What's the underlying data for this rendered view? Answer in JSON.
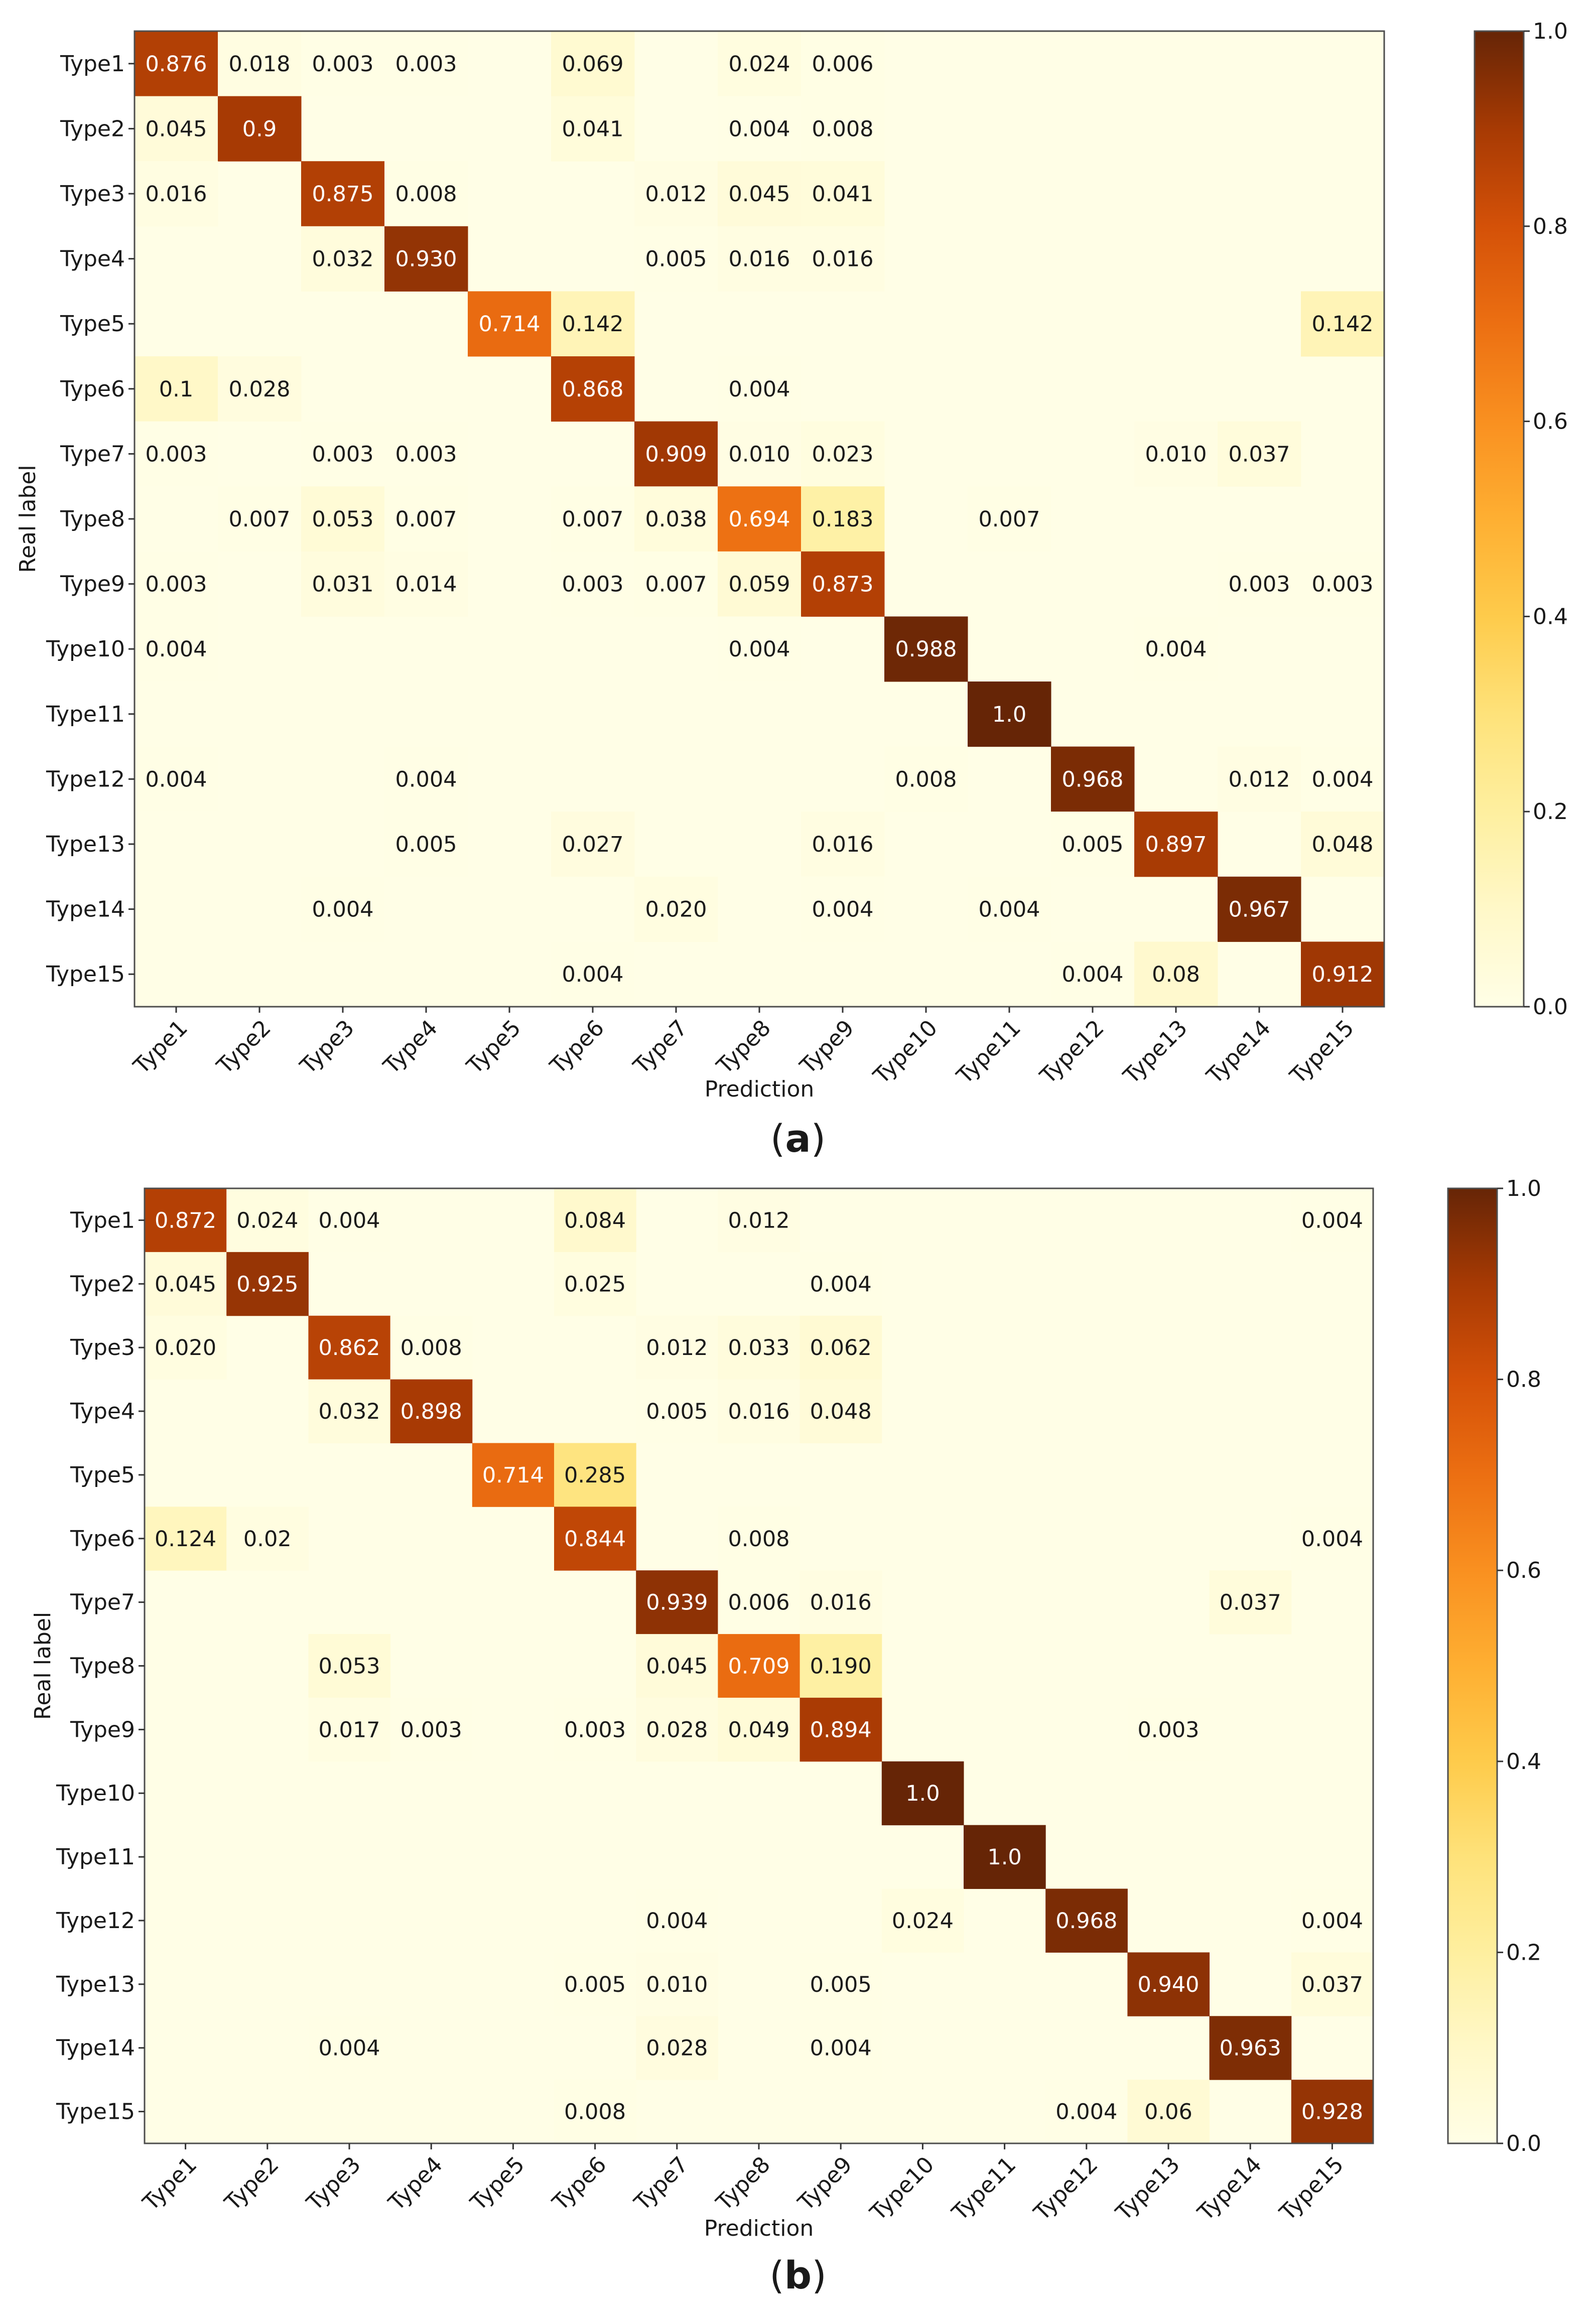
{
  "chart_data": [
    {
      "type": "heatmap",
      "panel_label": "a",
      "xlabel": "Prediction",
      "ylabel": "Real label",
      "x_categories": [
        "Type1",
        "Type2",
        "Type3",
        "Type4",
        "Type5",
        "Type6",
        "Type7",
        "Type8",
        "Type9",
        "Type10",
        "Type11",
        "Type12",
        "Type13",
        "Type14",
        "Type15"
      ],
      "y_categories": [
        "Type1",
        "Type2",
        "Type3",
        "Type4",
        "Type5",
        "Type6",
        "Type7",
        "Type8",
        "Type9",
        "Type10",
        "Type11",
        "Type12",
        "Type13",
        "Type14",
        "Type15"
      ],
      "cells": [
        [
          "0.876",
          "0.018",
          "0.003",
          "0.003",
          "",
          "0.069",
          "",
          "0.024",
          "0.006",
          "",
          "",
          "",
          "",
          "",
          ""
        ],
        [
          "0.045",
          "0.9",
          "",
          "",
          "",
          "0.041",
          "",
          "0.004",
          "0.008",
          "",
          "",
          "",
          "",
          "",
          ""
        ],
        [
          "0.016",
          "",
          "0.875",
          "0.008",
          "",
          "",
          "0.012",
          "0.045",
          "0.041",
          "",
          "",
          "",
          "",
          "",
          ""
        ],
        [
          "",
          "",
          "0.032",
          "0.930",
          "",
          "",
          "0.005",
          "0.016",
          "0.016",
          "",
          "",
          "",
          "",
          "",
          ""
        ],
        [
          "",
          "",
          "",
          "",
          "0.714",
          "0.142",
          "",
          "",
          "",
          "",
          "",
          "",
          "",
          "",
          "0.142"
        ],
        [
          "0.1",
          "0.028",
          "",
          "",
          "",
          "0.868",
          "",
          "0.004",
          "",
          "",
          "",
          "",
          "",
          "",
          ""
        ],
        [
          "0.003",
          "",
          "0.003",
          "0.003",
          "",
          "",
          "0.909",
          "0.010",
          "0.023",
          "",
          "",
          "",
          "0.010",
          "0.037",
          ""
        ],
        [
          "",
          "0.007",
          "0.053",
          "0.007",
          "",
          "0.007",
          "0.038",
          "0.694",
          "0.183",
          "",
          "0.007",
          "",
          "",
          "",
          ""
        ],
        [
          "0.003",
          "",
          "0.031",
          "0.014",
          "",
          "0.003",
          "0.007",
          "0.059",
          "0.873",
          "",
          "",
          "",
          "",
          "0.003",
          "0.003"
        ],
        [
          "0.004",
          "",
          "",
          "",
          "",
          "",
          "",
          "0.004",
          "",
          "0.988",
          "",
          "",
          "0.004",
          "",
          ""
        ],
        [
          "",
          "",
          "",
          "",
          "",
          "",
          "",
          "",
          "",
          "",
          "1.0",
          "",
          "",
          "",
          ""
        ],
        [
          "0.004",
          "",
          "",
          "0.004",
          "",
          "",
          "",
          "",
          "",
          "0.008",
          "",
          "0.968",
          "",
          "0.012",
          "0.004"
        ],
        [
          "",
          "",
          "",
          "0.005",
          "",
          "0.027",
          "",
          "",
          "0.016",
          "",
          "",
          "0.005",
          "0.897",
          "",
          "0.048"
        ],
        [
          "",
          "",
          "0.004",
          "",
          "",
          "",
          "0.020",
          "",
          "0.004",
          "",
          "0.004",
          "",
          "",
          "0.967",
          ""
        ],
        [
          "",
          "",
          "",
          "",
          "",
          "0.004",
          "",
          "",
          "",
          "",
          "",
          "0.004",
          "0.08",
          "",
          "0.912"
        ]
      ],
      "colorbar": {
        "min": 0.0,
        "max": 1.0,
        "ticks": [
          "0.0",
          "0.2",
          "0.4",
          "0.6",
          "0.8",
          "1.0"
        ],
        "colormap": "YlOrBr"
      }
    },
    {
      "type": "heatmap",
      "panel_label": "b",
      "xlabel": "Prediction",
      "ylabel": "Real label",
      "x_categories": [
        "Type1",
        "Type2",
        "Type3",
        "Type4",
        "Type5",
        "Type6",
        "Type7",
        "Type8",
        "Type9",
        "Type10",
        "Type11",
        "Type12",
        "Type13",
        "Type14",
        "Type15"
      ],
      "y_categories": [
        "Type1",
        "Type2",
        "Type3",
        "Type4",
        "Type5",
        "Type6",
        "Type7",
        "Type8",
        "Type9",
        "Type10",
        "Type11",
        "Type12",
        "Type13",
        "Type14",
        "Type15"
      ],
      "cells": [
        [
          "0.872",
          "0.024",
          "0.004",
          "",
          "",
          "0.084",
          "",
          "0.012",
          "",
          "",
          "",
          "",
          "",
          "",
          "0.004"
        ],
        [
          "0.045",
          "0.925",
          "",
          "",
          "",
          "0.025",
          "",
          "",
          "0.004",
          "",
          "",
          "",
          "",
          "",
          ""
        ],
        [
          "0.020",
          "",
          "0.862",
          "0.008",
          "",
          "",
          "0.012",
          "0.033",
          "0.062",
          "",
          "",
          "",
          "",
          "",
          ""
        ],
        [
          "",
          "",
          "0.032",
          "0.898",
          "",
          "",
          "0.005",
          "0.016",
          "0.048",
          "",
          "",
          "",
          "",
          "",
          ""
        ],
        [
          "",
          "",
          "",
          "",
          "0.714",
          "0.285",
          "",
          "",
          "",
          "",
          "",
          "",
          "",
          "",
          ""
        ],
        [
          "0.124",
          "0.02",
          "",
          "",
          "",
          "0.844",
          "",
          "0.008",
          "",
          "",
          "",
          "",
          "",
          "",
          "0.004"
        ],
        [
          "",
          "",
          "",
          "",
          "",
          "",
          "0.939",
          "0.006",
          "0.016",
          "",
          "",
          "",
          "",
          "0.037",
          ""
        ],
        [
          "",
          "",
          "0.053",
          "",
          "",
          "",
          "0.045",
          "0.709",
          "0.190",
          "",
          "",
          "",
          "",
          "",
          ""
        ],
        [
          "",
          "",
          "0.017",
          "0.003",
          "",
          "0.003",
          "0.028",
          "0.049",
          "0.894",
          "",
          "",
          "",
          "0.003",
          "",
          ""
        ],
        [
          "",
          "",
          "",
          "",
          "",
          "",
          "",
          "",
          "",
          "1.0",
          "",
          "",
          "",
          "",
          ""
        ],
        [
          "",
          "",
          "",
          "",
          "",
          "",
          "",
          "",
          "",
          "",
          "1.0",
          "",
          "",
          "",
          ""
        ],
        [
          "",
          "",
          "",
          "",
          "",
          "",
          "0.004",
          "",
          "",
          "0.024",
          "",
          "0.968",
          "",
          "",
          "0.004"
        ],
        [
          "",
          "",
          "",
          "",
          "",
          "0.005",
          "0.010",
          "",
          "0.005",
          "",
          "",
          "",
          "0.940",
          "",
          "0.037"
        ],
        [
          "",
          "",
          "0.004",
          "",
          "",
          "",
          "0.028",
          "",
          "0.004",
          "",
          "",
          "",
          "",
          "0.963",
          ""
        ],
        [
          "",
          "",
          "",
          "",
          "",
          "0.008",
          "",
          "",
          "",
          "",
          "",
          "0.004",
          "0.06",
          "",
          "0.928"
        ]
      ],
      "colorbar": {
        "min": 0.0,
        "max": 1.0,
        "ticks": [
          "0.0",
          "0.2",
          "0.4",
          "0.6",
          "0.8",
          "1.0"
        ],
        "colormap": "YlOrBr"
      }
    }
  ]
}
